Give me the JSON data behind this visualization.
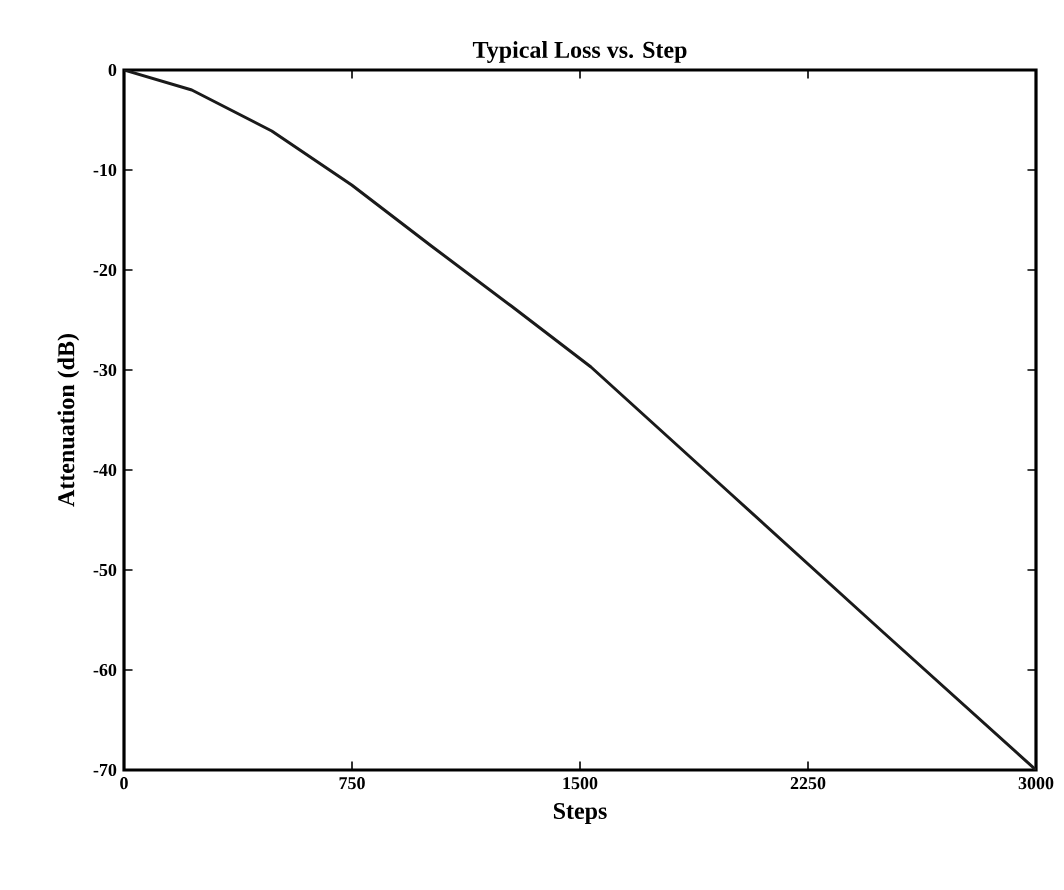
{
  "chart_data": {
    "type": "line",
    "title": "Typical Loss vs. Step",
    "xlabel": "Steps",
    "ylabel": "Attenuation (dB)",
    "x": [
      0,
      223,
      486,
      749,
      1011,
      1274,
      1536,
      2000,
      2500,
      3000
    ],
    "series": [
      {
        "color": "#1a1a1a",
        "values": [
          0,
          -2.0,
          -6.1,
          -11.5,
          -17.6,
          -23.6,
          -29.7,
          -42.5,
          -56.3,
          -70
        ]
      }
    ],
    "xlim": [
      0,
      3000
    ],
    "ylim": [
      -70,
      0
    ],
    "xticks": [
      0,
      750,
      1500,
      2250,
      3000
    ],
    "yticks": [
      -70,
      -60,
      -50,
      -40,
      -30,
      -20,
      -10,
      0
    ],
    "grid": false,
    "marker": "none",
    "line_style": "solid"
  }
}
